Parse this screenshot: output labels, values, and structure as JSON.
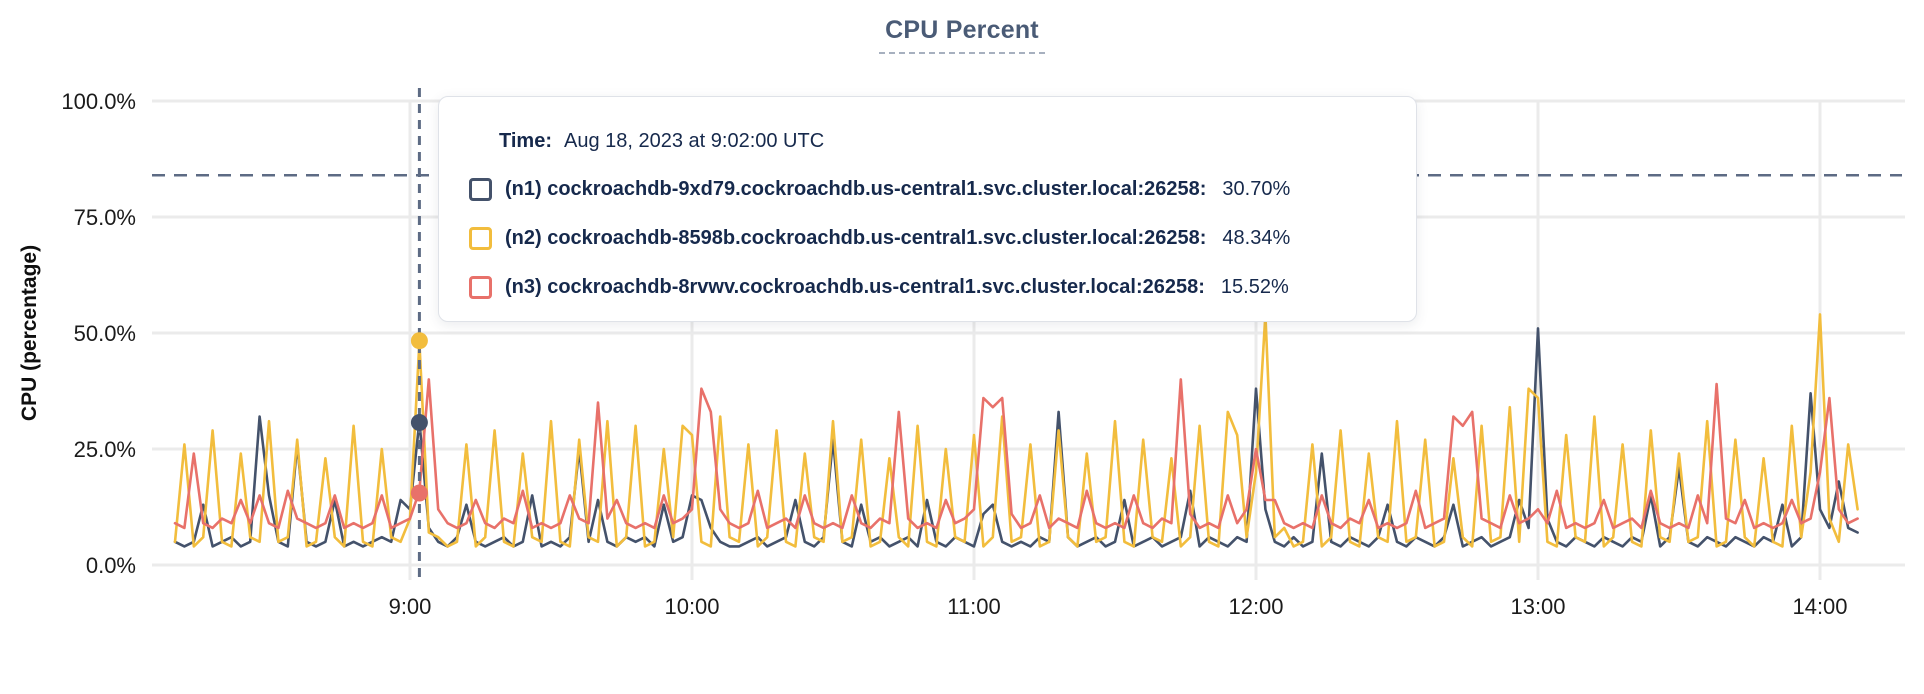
{
  "page": {
    "title": "CPU Percent"
  },
  "tooltip": {
    "time_label": "Time:",
    "time_value": "Aug 18, 2023 at 9:02:00 UTC",
    "rows": [
      {
        "label": "(n1) cockroachdb-9xd79.cockroachdb.us-central1.svc.cluster.local:26258:",
        "value": "30.70%",
        "color": "#44526b"
      },
      {
        "label": "(n2) cockroachdb-8598b.cockroachdb.us-central1.svc.cluster.local:26258:",
        "value": "48.34%",
        "color": "#f2bd3d"
      },
      {
        "label": "(n3) cockroachdb-8rvwv.cockroachdb.us-central1.svc.cluster.local:26258:",
        "value": "15.52%",
        "color": "#e8716a"
      }
    ]
  },
  "chart_data": {
    "type": "line",
    "title": "CPU Percent",
    "xlabel": "",
    "ylabel": "CPU (percentage)",
    "grid": true,
    "legend_position": "tooltip",
    "y_axis": {
      "min": 0,
      "max": 100,
      "ticks": [
        0,
        25,
        50,
        75,
        100
      ],
      "tick_labels": [
        "0.0%",
        "25.0%",
        "50.0%",
        "75.0%",
        "100.0%"
      ]
    },
    "x_axis": {
      "unit": "time",
      "start_minutes": 490,
      "step_minutes": 2,
      "tick_minutes": [
        540,
        600,
        660,
        720,
        780,
        840
      ],
      "tick_labels": [
        "9:00",
        "10:00",
        "11:00",
        "12:00",
        "13:00",
        "14:00"
      ]
    },
    "reference_line_pct": 84,
    "hover": {
      "time_minutes": 542,
      "time_label": "9:02",
      "values_pct": [
        30.7,
        48.34,
        15.52
      ]
    },
    "colors": {
      "n1": "#44526b",
      "n2": "#f2bd3d",
      "n3": "#e8716a",
      "grid": "#ebebeb",
      "tick": "#d8d8d8",
      "crosshair": "#5d6b84",
      "axis_text": "#1b1b1b",
      "title": "#4a5b76"
    },
    "series": [
      {
        "name": "(n1) cockroachdb-9xd79.cockroachdb.us-central1.svc.cluster.local:26258",
        "color": "#44526b",
        "values": [
          5,
          4,
          5,
          13,
          4,
          5,
          6,
          4,
          5,
          32,
          15,
          5,
          4,
          26,
          5,
          4,
          5,
          14,
          4,
          5,
          4,
          5,
          6,
          5,
          14,
          12,
          31,
          8,
          5,
          4,
          6,
          13,
          5,
          4,
          5,
          6,
          4,
          5,
          15,
          4,
          5,
          4,
          6,
          25,
          5,
          14,
          5,
          4,
          6,
          5,
          6,
          4,
          13,
          5,
          6,
          15,
          14,
          8,
          5,
          4,
          4,
          5,
          6,
          4,
          5,
          6,
          14,
          5,
          4,
          6,
          27,
          5,
          4,
          13,
          5,
          6,
          4,
          5,
          6,
          4,
          14,
          5,
          4,
          6,
          5,
          4,
          11,
          13,
          5,
          4,
          5,
          4,
          6,
          5,
          33,
          6,
          4,
          5,
          6,
          4,
          5,
          14,
          4,
          5,
          6,
          4,
          5,
          6,
          16,
          4,
          6,
          5,
          4,
          6,
          5,
          38,
          12,
          5,
          4,
          6,
          4,
          5,
          24,
          5,
          4,
          6,
          5,
          4,
          6,
          13,
          5,
          4,
          6,
          5,
          4,
          6,
          13,
          4,
          5,
          6,
          4,
          5,
          6,
          14,
          8,
          51,
          10,
          5,
          4,
          6,
          5,
          4,
          6,
          5,
          4,
          6,
          5,
          15,
          4,
          6,
          21,
          5,
          4,
          6,
          5,
          4,
          6,
          5,
          4,
          6,
          5,
          13,
          4,
          6,
          37,
          12,
          8,
          18,
          8,
          7
        ]
      },
      {
        "name": "(n2) cockroachdb-8598b.cockroachdb.us-central1.svc.cluster.local:26258",
        "color": "#f2bd3d",
        "values": [
          5,
          26,
          4,
          6,
          29,
          5,
          4,
          24,
          6,
          5,
          31,
          5,
          6,
          27,
          4,
          5,
          23,
          6,
          4,
          30,
          5,
          4,
          25,
          6,
          5,
          10,
          48,
          7,
          6,
          4,
          5,
          26,
          4,
          6,
          29,
          5,
          4,
          24,
          6,
          5,
          31,
          5,
          4,
          27,
          6,
          5,
          31,
          4,
          6,
          30,
          4,
          5,
          25,
          6,
          30,
          28,
          5,
          4,
          32,
          6,
          5,
          26,
          4,
          6,
          29,
          5,
          4,
          24,
          6,
          5,
          31,
          5,
          6,
          27,
          4,
          5,
          23,
          6,
          4,
          30,
          5,
          4,
          25,
          6,
          5,
          28,
          4,
          6,
          32,
          5,
          6,
          26,
          4,
          5,
          29,
          6,
          4,
          24,
          5,
          6,
          31,
          5,
          4,
          27,
          6,
          5,
          23,
          4,
          6,
          30,
          5,
          4,
          33,
          28,
          6,
          20,
          54,
          6,
          8,
          4,
          5,
          26,
          4,
          6,
          29,
          5,
          4,
          24,
          6,
          5,
          31,
          5,
          6,
          27,
          4,
          5,
          23,
          6,
          4,
          30,
          5,
          6,
          34,
          5,
          38,
          36,
          5,
          4,
          28,
          6,
          5,
          32,
          4,
          6,
          26,
          5,
          4,
          29,
          6,
          5,
          24,
          5,
          6,
          31,
          4,
          5,
          27,
          6,
          4,
          23,
          5,
          4,
          30,
          6,
          20,
          54,
          10,
          5,
          26,
          12
        ]
      },
      {
        "name": "(n3) cockroachdb-8rvwv.cockroachdb.us-central1.svc.cluster.local:26258",
        "color": "#e8716a",
        "values": [
          9,
          8,
          24,
          9,
          8,
          10,
          9,
          14,
          9,
          15,
          9,
          8,
          16,
          10,
          9,
          8,
          9,
          15,
          8,
          9,
          8,
          9,
          15,
          8,
          9,
          10,
          16,
          40,
          12,
          9,
          8,
          9,
          14,
          9,
          8,
          10,
          9,
          16,
          8,
          9,
          8,
          9,
          15,
          10,
          9,
          35,
          10,
          14,
          9,
          8,
          9,
          8,
          15,
          9,
          10,
          12,
          38,
          33,
          12,
          9,
          8,
          9,
          16,
          8,
          9,
          10,
          8,
          15,
          9,
          8,
          9,
          8,
          15,
          9,
          8,
          10,
          9,
          33,
          10,
          8,
          9,
          8,
          14,
          9,
          10,
          12,
          36,
          34,
          36,
          11,
          8,
          9,
          15,
          8,
          10,
          9,
          8,
          16,
          9,
          8,
          9,
          8,
          15,
          9,
          8,
          10,
          9,
          40,
          11,
          8,
          9,
          8,
          15,
          9,
          12,
          25,
          14,
          14,
          9,
          8,
          9,
          8,
          15,
          9,
          8,
          10,
          9,
          14,
          8,
          9,
          8,
          9,
          16,
          8,
          9,
          10,
          32,
          30,
          33,
          10,
          9,
          8,
          15,
          9,
          10,
          12,
          9,
          16,
          8,
          9,
          8,
          9,
          14,
          8,
          9,
          10,
          8,
          16,
          9,
          8,
          9,
          8,
          15,
          9,
          39,
          10,
          9,
          14,
          8,
          9,
          8,
          9,
          14,
          9,
          10,
          20,
          36,
          12,
          9,
          10
        ]
      }
    ]
  }
}
